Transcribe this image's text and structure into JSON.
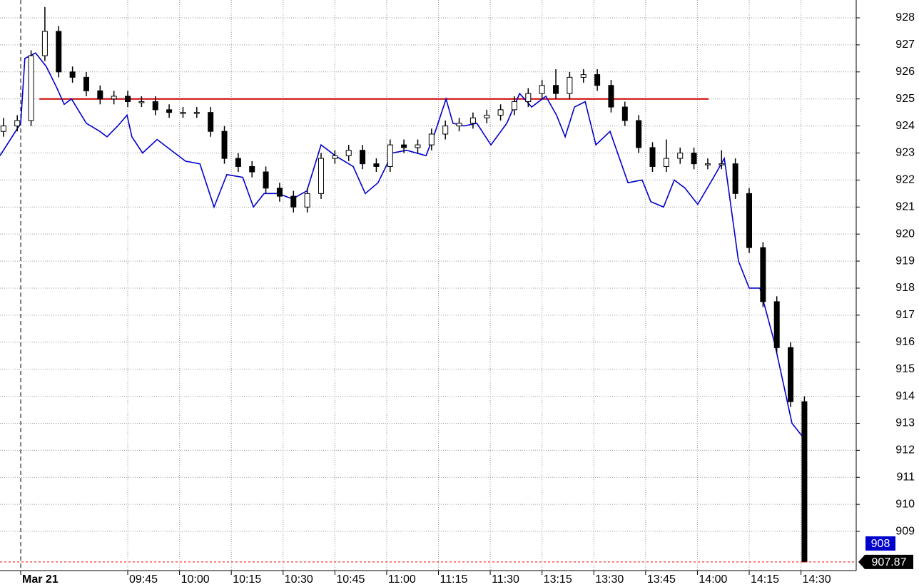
{
  "chart_data": {
    "type": "candlestick",
    "x": [
      -36,
      -32,
      -28,
      -24,
      -20,
      -16,
      -12,
      -8,
      -4,
      0,
      4,
      8,
      12,
      16,
      20,
      24,
      28,
      32,
      36,
      40,
      44,
      48,
      52,
      56,
      60,
      64,
      68,
      72,
      76,
      80,
      84,
      88,
      92,
      96,
      100,
      104,
      108,
      112,
      116,
      120,
      124,
      128,
      132,
      136,
      140,
      144,
      148,
      152,
      156,
      160,
      164,
      168,
      172,
      176,
      180,
      184,
      188,
      192,
      196
    ],
    "open": [
      923.8,
      924.0,
      924.2,
      926.6,
      927.5,
      926.0,
      925.8,
      925.3,
      925.0,
      925.1,
      924.9,
      924.9,
      924.6,
      924.5,
      924.5,
      924.5,
      923.8,
      922.8,
      922.5,
      922.3,
      921.7,
      921.4,
      921.0,
      921.5,
      922.8,
      922.9,
      923.1,
      922.6,
      922.5,
      923.3,
      923.2,
      923.3,
      923.7,
      924.0,
      924.1,
      924.3,
      924.4,
      924.6,
      924.9,
      925.2,
      925.5,
      925.2,
      925.8,
      925.9,
      925.5,
      924.7,
      924.2,
      923.2,
      922.5,
      922.8,
      923.0,
      922.6,
      922.6,
      922.6,
      921.5,
      919.5,
      917.5,
      915.8,
      913.8
    ],
    "high": [
      924.3,
      924.4,
      926.8,
      928.4,
      927.7,
      926.2,
      926.0,
      925.5,
      925.3,
      925.3,
      925.1,
      925.1,
      924.8,
      924.7,
      924.7,
      924.7,
      924.0,
      923.0,
      922.7,
      922.5,
      921.9,
      921.6,
      921.7,
      923.0,
      923.1,
      923.3,
      923.3,
      922.8,
      923.5,
      923.5,
      923.5,
      923.9,
      924.2,
      924.3,
      924.5,
      924.6,
      924.8,
      925.1,
      925.4,
      925.7,
      926.1,
      926.0,
      926.1,
      926.1,
      925.7,
      924.9,
      924.4,
      923.4,
      923.5,
      923.2,
      923.2,
      922.8,
      923.1,
      922.8,
      921.7,
      919.7,
      917.7,
      916.0,
      914.0
    ],
    "low": [
      923.6,
      923.8,
      924.0,
      926.4,
      925.8,
      925.6,
      925.1,
      924.8,
      924.8,
      924.7,
      924.7,
      924.4,
      924.3,
      924.3,
      924.3,
      923.6,
      922.6,
      922.3,
      922.1,
      921.5,
      921.2,
      920.8,
      920.8,
      921.3,
      922.6,
      922.7,
      922.4,
      922.3,
      922.3,
      923.0,
      923.0,
      923.1,
      923.5,
      923.8,
      923.9,
      924.1,
      924.2,
      924.4,
      924.7,
      925.0,
      925.0,
      925.0,
      925.6,
      925.3,
      924.5,
      924.0,
      923.0,
      922.3,
      922.3,
      922.6,
      922.4,
      922.4,
      922.4,
      921.3,
      919.3,
      917.3,
      915.6,
      913.6,
      907.87
    ],
    "close": [
      924.0,
      924.2,
      926.6,
      927.5,
      926.0,
      925.8,
      925.3,
      925.0,
      925.1,
      924.9,
      924.9,
      924.6,
      924.5,
      924.5,
      924.5,
      923.8,
      922.8,
      922.5,
      922.3,
      921.7,
      921.4,
      921.0,
      921.5,
      922.8,
      922.9,
      923.1,
      922.6,
      922.5,
      923.3,
      923.2,
      923.3,
      923.7,
      924.0,
      924.1,
      924.3,
      924.4,
      924.6,
      924.9,
      925.2,
      925.5,
      925.2,
      925.8,
      925.9,
      925.5,
      924.7,
      924.2,
      923.2,
      922.5,
      922.8,
      923.0,
      922.6,
      922.6,
      922.6,
      921.5,
      919.5,
      917.5,
      915.8,
      913.8,
      907.87
    ],
    "overlay": {
      "type": "line",
      "color": "#0000cc",
      "x": [
        -37,
        -31,
        -29.8,
        -26.7,
        -23.6,
        -20.5,
        -18.4,
        -16.3,
        -12,
        -8.1,
        -6,
        -2.9,
        -0.2,
        1.2,
        4.3,
        8.5,
        12.6,
        16.7,
        20.9,
        25,
        28.7,
        33.3,
        36.4,
        39.5,
        43.6,
        47.7,
        51.9,
        56,
        60.1,
        65.3,
        68.8,
        72.5,
        76.7,
        80.8,
        86.4,
        89.1,
        92.2,
        94.2,
        97.4,
        101.1,
        105.2,
        109.8,
        113.5,
        117,
        121.1,
        124.2,
        126.7,
        129.4,
        132.5,
        135.6,
        139.7,
        144.9,
        149,
        151.5,
        155.2,
        158.3,
        161.4,
        165.1,
        169.7,
        172.8,
        176.9,
        180,
        183.1,
        187.3,
        192.4,
        195.5,
        196.3
      ],
      "values": [
        922.9,
        924.1,
        926.5,
        926.7,
        926.2,
        925.4,
        924.8,
        925.0,
        924.1,
        923.8,
        923.6,
        924.0,
        924.4,
        923.6,
        923.0,
        923.5,
        923.1,
        922.7,
        922.6,
        921.0,
        922.2,
        922.1,
        921.0,
        921.5,
        921.5,
        921.3,
        921.6,
        923.3,
        922.9,
        922.5,
        921.5,
        921.9,
        923.0,
        923.1,
        922.9,
        923.8,
        925.0,
        924.1,
        924.0,
        924.1,
        923.3,
        924.1,
        925.2,
        924.7,
        925.1,
        924.4,
        923.6,
        924.7,
        924.9,
        923.3,
        923.8,
        921.9,
        922.0,
        921.2,
        921.0,
        922.0,
        921.7,
        921.1,
        922.1,
        922.8,
        919.0,
        918.0,
        918.0,
        916.0,
        913.0,
        912.5,
        909.0
      ]
    },
    "hline": {
      "value": 925,
      "x": [
        -25.6,
        168.2
      ],
      "color": "#cc0000"
    },
    "price_labels": [
      {
        "value": 908,
        "color": "#0000cc"
      },
      {
        "value": 907.87,
        "color": "#000000"
      }
    ],
    "price_line_color": "#ff0000",
    "xlim": [
      -37,
      211
    ],
    "ylim": [
      907.55,
      928.66
    ],
    "xticks": [
      {
        "value": -31,
        "label": "Mar 21"
      },
      {
        "value": 0,
        "label": "09:45"
      },
      {
        "value": 15,
        "label": "10:00"
      },
      {
        "value": 30,
        "label": "10:15"
      },
      {
        "value": 45,
        "label": "10:30"
      },
      {
        "value": 60,
        "label": "10:45"
      },
      {
        "value": 75,
        "label": "11:00"
      },
      {
        "value": 90,
        "label": "11:15"
      },
      {
        "value": 105,
        "label": "11:30"
      },
      {
        "value": 120,
        "label": "13:15"
      },
      {
        "value": 135,
        "label": "13:30"
      },
      {
        "value": 150,
        "label": "13:45"
      },
      {
        "value": 165,
        "label": "14:00"
      },
      {
        "value": 180,
        "label": "14:15"
      },
      {
        "value": 195,
        "label": "14:30"
      }
    ],
    "yticks": [
      909,
      910,
      911,
      912,
      913,
      914,
      915,
      916,
      917,
      918,
      919,
      920,
      921,
      922,
      923,
      924,
      925,
      926,
      927,
      928
    ],
    "grid": true
  }
}
